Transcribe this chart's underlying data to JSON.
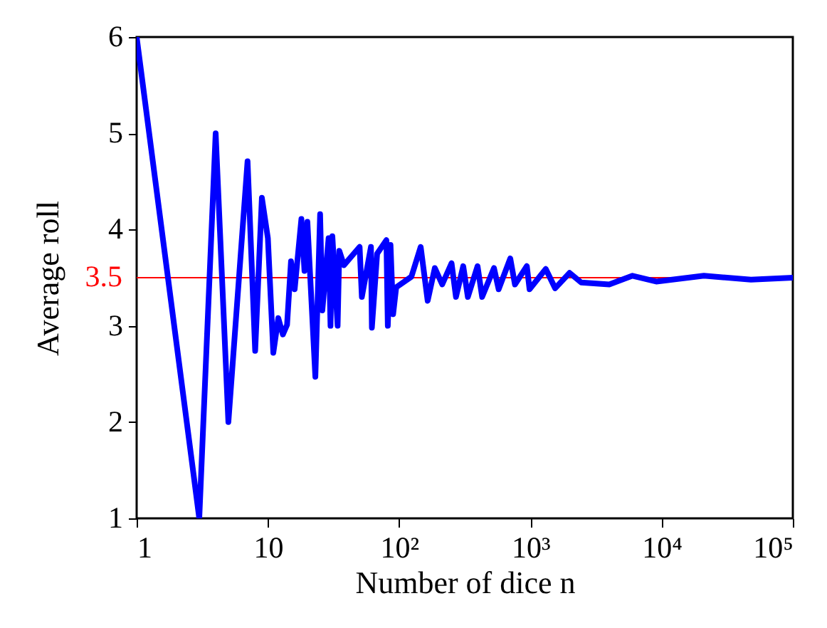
{
  "chart_data": {
    "type": "line",
    "xlabel": "Number of dice n",
    "ylabel": "Average roll",
    "x": [
      1,
      3,
      4,
      5,
      7,
      8,
      9,
      10,
      11,
      12,
      13,
      14,
      15,
      16,
      18,
      19,
      20,
      23,
      25,
      26,
      29,
      30,
      31,
      34,
      35,
      38,
      50,
      52,
      61,
      62,
      68,
      80,
      82,
      86,
      90,
      95,
      124,
      146,
      165,
      187,
      213,
      251,
      271,
      308,
      334,
      396,
      429,
      528,
      573,
      703,
      763,
      940,
      986,
      1310,
      1545,
      1990,
      2440,
      3990,
      6000,
      9100,
      21000,
      48000,
      100000
    ],
    "series": [
      {
        "color": "#0000ff",
        "values": [
          6,
          1,
          5,
          2,
          4.71,
          2.74,
          4.33,
          3.91,
          2.72,
          3.08,
          2.91,
          3.01,
          3.67,
          3.38,
          4.11,
          3.57,
          4.08,
          2.47,
          4.16,
          3.16,
          3.91,
          3.0,
          3.93,
          3.0,
          3.78,
          3.63,
          3.82,
          3.3,
          3.82,
          2.98,
          3.75,
          3.89,
          3.0,
          3.84,
          3.12,
          3.4,
          3.51,
          3.82,
          3.26,
          3.6,
          3.43,
          3.65,
          3.3,
          3.62,
          3.3,
          3.62,
          3.3,
          3.6,
          3.38,
          3.7,
          3.43,
          3.62,
          3.38,
          3.59,
          3.39,
          3.55,
          3.45,
          3.43,
          3.52,
          3.46,
          3.52,
          3.48,
          3.5
        ]
      }
    ],
    "log": "x",
    "xlim": [
      1,
      100000
    ],
    "ylim": [
      1,
      6
    ],
    "xticks": [
      1,
      10,
      {
        "value": 100,
        "label": "10²"
      },
      {
        "value": 1000,
        "label": "10³"
      },
      {
        "value": 10000,
        "label": "10⁴"
      },
      {
        "value": 100000,
        "label": "10⁵"
      }
    ],
    "yticks": [
      1,
      2,
      3,
      4,
      5,
      6
    ],
    "ref_lines": [
      {
        "axis": "y",
        "value": 3.5,
        "label": "3.5",
        "color": "#ff0000"
      }
    ],
    "grid": false,
    "line_style": "solid",
    "marker": "none"
  }
}
